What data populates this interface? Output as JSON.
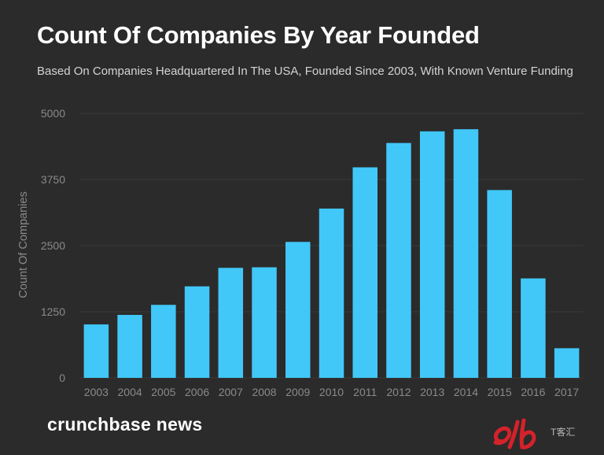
{
  "header": {
    "title": "Count Of Companies By Year Founded",
    "subtitle": "Based On Companies Headquartered In The USA, Founded Since 2003, With Known Venture Funding"
  },
  "footer": {
    "brand": "crunchbase news",
    "watermark_text": "T客汇"
  },
  "colors": {
    "background": "#2b2b2b",
    "bar": "#41c8f8",
    "gridline": "#3a3a3a",
    "axis_text": "#8a8a8a",
    "watermark": "#d5222a"
  },
  "chart_data": {
    "type": "bar",
    "title": "Count Of Companies By Year Founded",
    "subtitle": "Based On Companies Headquartered In The USA, Founded Since 2003, With Known Venture Funding",
    "xlabel": "",
    "ylabel": "Count Of Companies",
    "categories": [
      "2003",
      "2004",
      "2005",
      "2006",
      "2007",
      "2008",
      "2009",
      "2010",
      "2011",
      "2012",
      "2013",
      "2014",
      "2015",
      "2016",
      "2017"
    ],
    "values": [
      1010,
      1190,
      1380,
      1730,
      2080,
      2090,
      2570,
      3200,
      3980,
      4440,
      4660,
      4700,
      3550,
      1880,
      560
    ],
    "yticks": [
      0,
      1250,
      2500,
      3750,
      5000
    ],
    "ytick_labels": [
      "0",
      "1250",
      "2500",
      "3750",
      "5000"
    ],
    "ylim": [
      0,
      5000
    ],
    "grid": true,
    "legend": "none"
  }
}
